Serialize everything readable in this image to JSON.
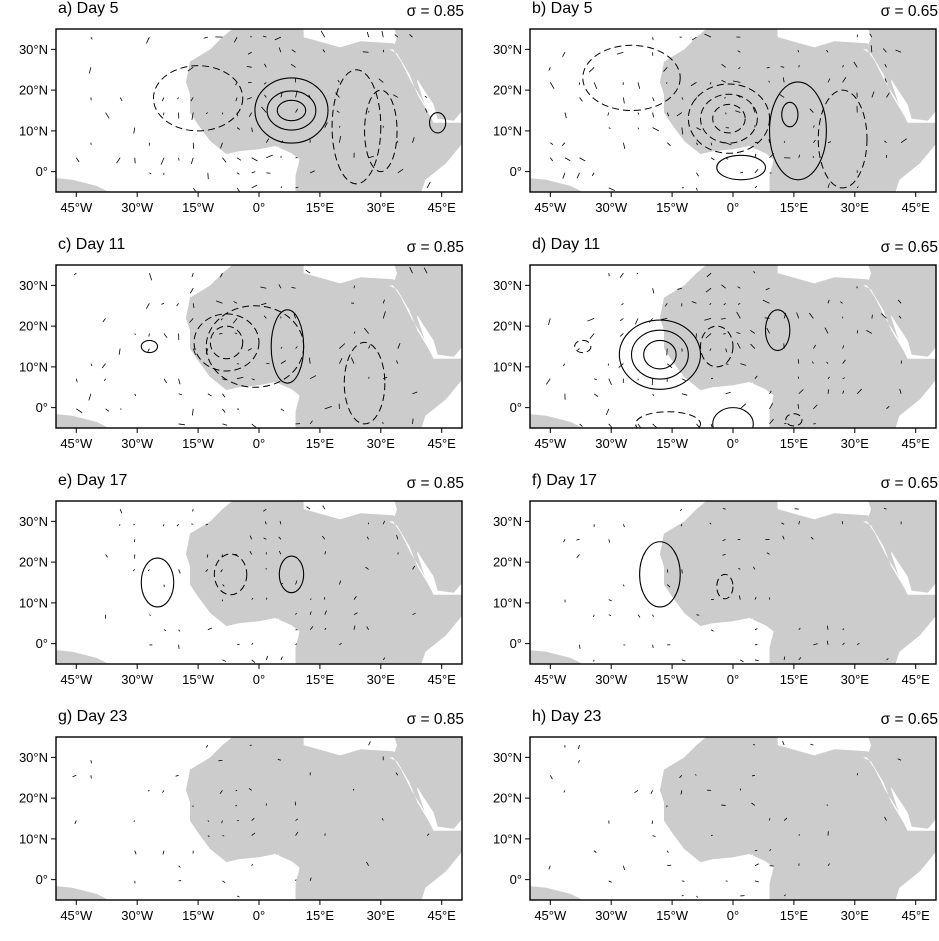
{
  "panels": [
    {
      "label": "a) Day 5",
      "sigma": "σ = 0.85",
      "day": 5,
      "sigma_value": 0.85,
      "solid": [
        [
          8,
          15,
          3.5,
          2.5
        ],
        [
          8,
          15,
          6,
          4.8
        ],
        [
          8,
          15,
          9,
          8
        ],
        [
          44,
          12,
          2,
          2.5
        ]
      ],
      "dashed": [
        [
          -15,
          18,
          11,
          8
        ],
        [
          30,
          10,
          4,
          10
        ],
        [
          24,
          11,
          6,
          14
        ]
      ]
    },
    {
      "label": "b) Day 5",
      "sigma": "σ = 0.65",
      "day": 5,
      "sigma_value": 0.65,
      "solid": [
        [
          14,
          14,
          2,
          3
        ],
        [
          16,
          10,
          7,
          12
        ],
        [
          2,
          1,
          6,
          3
        ]
      ],
      "dashed": [
        [
          -1,
          13,
          4,
          3.5
        ],
        [
          -1,
          13,
          7,
          6
        ],
        [
          -1,
          13,
          10,
          8.5
        ],
        [
          -25,
          23,
          12,
          8
        ],
        [
          27,
          8,
          6,
          12
        ]
      ]
    },
    {
      "label": "c) Day 11",
      "sigma": "σ = 0.85",
      "day": 11,
      "sigma_value": 0.85,
      "solid": [
        [
          -27,
          15,
          2,
          1.5
        ],
        [
          7,
          15,
          4,
          9
        ]
      ],
      "dashed": [
        [
          -8,
          16,
          4,
          4
        ],
        [
          -8,
          16,
          8,
          7
        ],
        [
          -1,
          15,
          12,
          10
        ],
        [
          26,
          6,
          5,
          10
        ]
      ]
    },
    {
      "label": "d) Day 11",
      "sigma": "σ = 0.65",
      "day": 11,
      "sigma_value": 0.65,
      "solid": [
        [
          -18,
          13,
          4,
          3.5
        ],
        [
          -18,
          13,
          7,
          6
        ],
        [
          -18,
          13,
          10,
          8.5
        ],
        [
          11,
          19,
          3,
          5
        ],
        [
          0,
          -4,
          5,
          4
        ]
      ],
      "dashed": [
        [
          -37,
          15,
          2,
          1.5
        ],
        [
          -4,
          15,
          4,
          5
        ],
        [
          -16,
          -4,
          8,
          3
        ],
        [
          15,
          -3,
          2,
          1.5
        ]
      ]
    },
    {
      "label": "e) Day 17",
      "sigma": "σ = 0.85",
      "day": 17,
      "sigma_value": 0.85,
      "solid": [
        [
          -25,
          15,
          4,
          6
        ],
        [
          8,
          17,
          3,
          4.5
        ]
      ],
      "dashed": [
        [
          -7,
          17,
          4,
          5
        ]
      ]
    },
    {
      "label": "f) Day 17",
      "sigma": "σ = 0.65",
      "day": 17,
      "sigma_value": 0.65,
      "solid": [
        [
          -18,
          17,
          5,
          8
        ]
      ],
      "dashed": [
        [
          -2,
          14,
          2,
          3
        ]
      ]
    },
    {
      "label": "g) Day 23",
      "sigma": "σ = 0.85",
      "day": 23,
      "sigma_value": 0.85,
      "solid": [],
      "dashed": []
    },
    {
      "label": "h) Day 23",
      "sigma": "σ = 0.65",
      "day": 23,
      "sigma_value": 0.65,
      "solid": [],
      "dashed": []
    }
  ],
  "axes": {
    "x_ticks": [
      -45,
      -30,
      -15,
      0,
      15,
      30,
      45
    ],
    "x_tick_labels": [
      "45°W",
      "30°W",
      "15°W",
      "0°",
      "15°E",
      "30°E",
      "45°E"
    ],
    "y_ticks": [
      0,
      10,
      20,
      30
    ],
    "y_tick_labels": [
      "0°",
      "10°N",
      "20°N",
      "30°N"
    ],
    "lon_range": [
      -50,
      50
    ],
    "lat_range": [
      -5,
      35
    ]
  },
  "chart_data": {
    "type": "contour-map",
    "panel_count": 8,
    "days": [
      5,
      11,
      17,
      23
    ],
    "sigma_levels": [
      0.85,
      0.65
    ],
    "layout": "4 rows × 2 columns",
    "land_color": "#cccccc",
    "contour_styles": [
      "solid",
      "dashed"
    ],
    "xlim": [
      -50,
      50
    ],
    "ylim": [
      -5,
      35
    ]
  }
}
